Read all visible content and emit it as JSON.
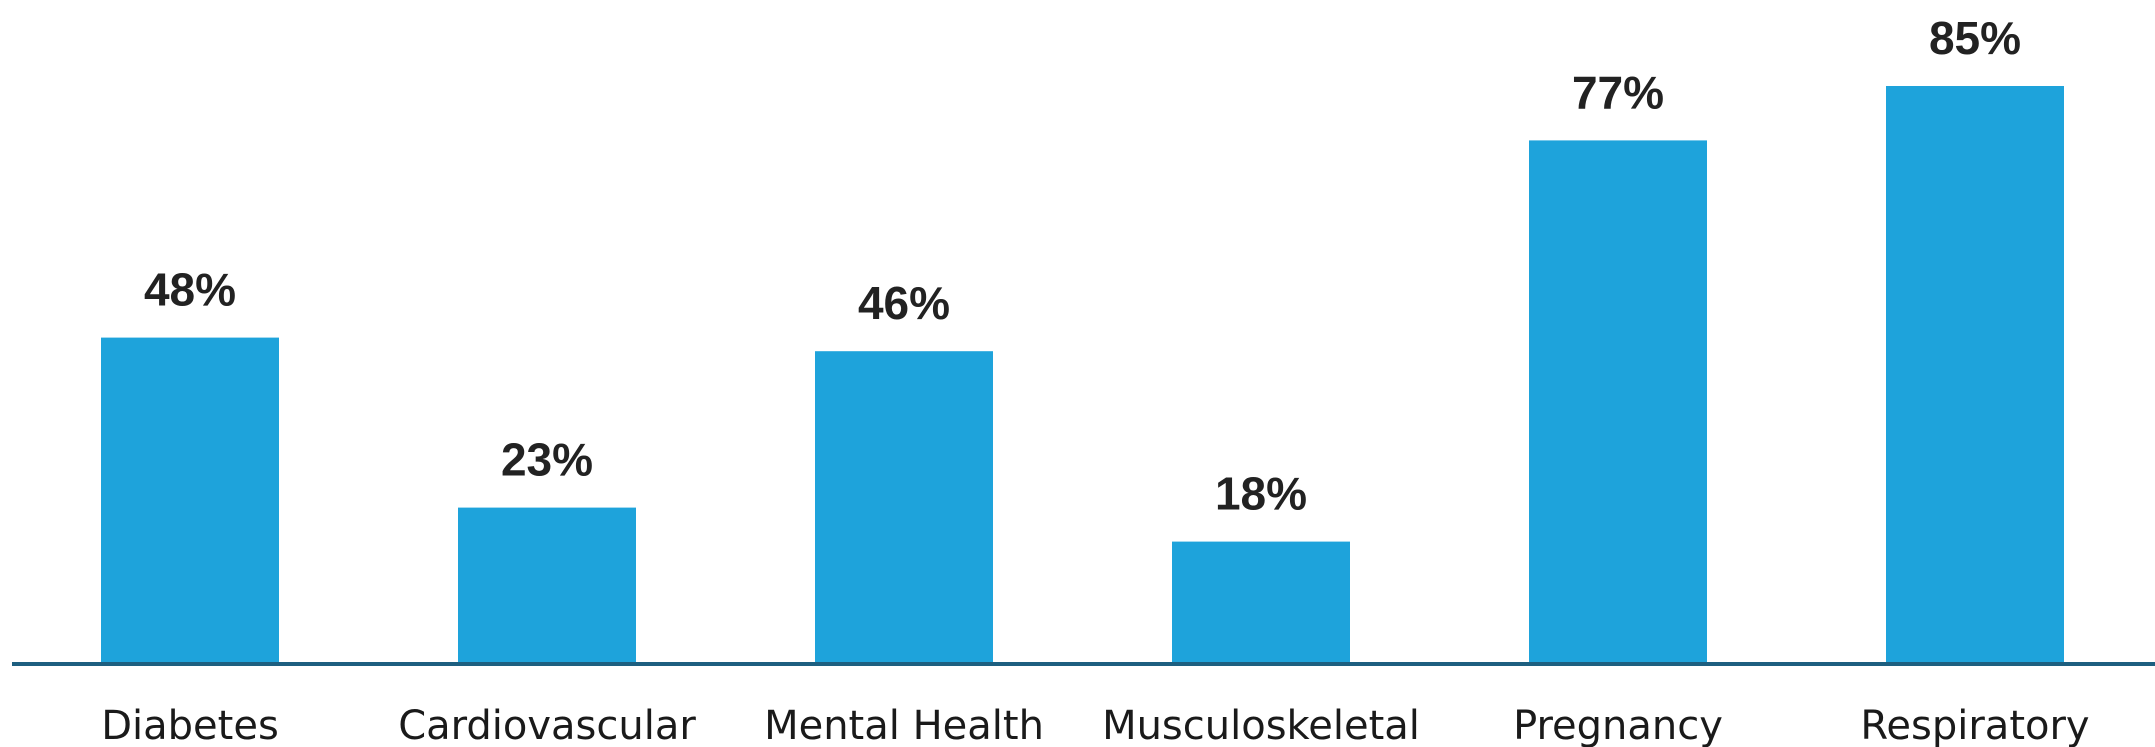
{
  "chart_data": {
    "type": "bar",
    "categories": [
      "Diabetes",
      "Cardiovascular",
      "Mental Health",
      "Musculoskeletal",
      "Pregnancy",
      "Respiratory"
    ],
    "values": [
      48,
      23,
      46,
      18,
      77,
      85
    ],
    "value_labels": [
      "48%",
      "23%",
      "46%",
      "18%",
      "77%",
      "85%"
    ],
    "title": "",
    "xlabel": "",
    "ylabel": "",
    "ylim": [
      0,
      100
    ],
    "grid": false,
    "legend": "none"
  },
  "colors": {
    "bar": "#1ea3db",
    "axis": "#1d5f80",
    "label_text": "#222222",
    "category_text": "#1a1a1a"
  }
}
